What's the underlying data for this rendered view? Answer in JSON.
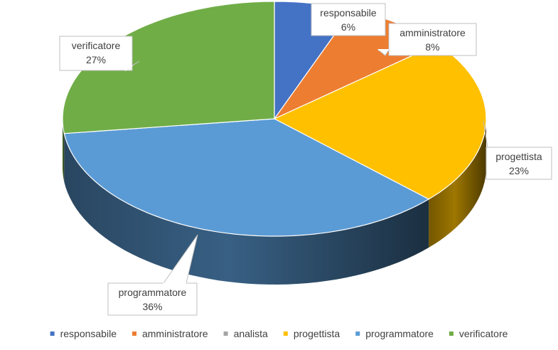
{
  "chart_data": {
    "type": "pie",
    "style": "3d-exploded-perspective",
    "categories": [
      "responsabile",
      "amministratore",
      "analista",
      "progettista",
      "programmatore",
      "verificatore"
    ],
    "values": [
      6,
      8,
      0,
      23,
      36,
      27
    ],
    "value_labels": [
      "6%",
      "8%",
      "",
      "23%",
      "36%",
      "27%"
    ],
    "colors": [
      "#4472C4",
      "#ED7D31",
      "#A5A5A5",
      "#FFC000",
      "#5B9BD5",
      "#70AD47"
    ],
    "legend_position": "bottom",
    "data_labels": "category-and-percent-callouts"
  }
}
